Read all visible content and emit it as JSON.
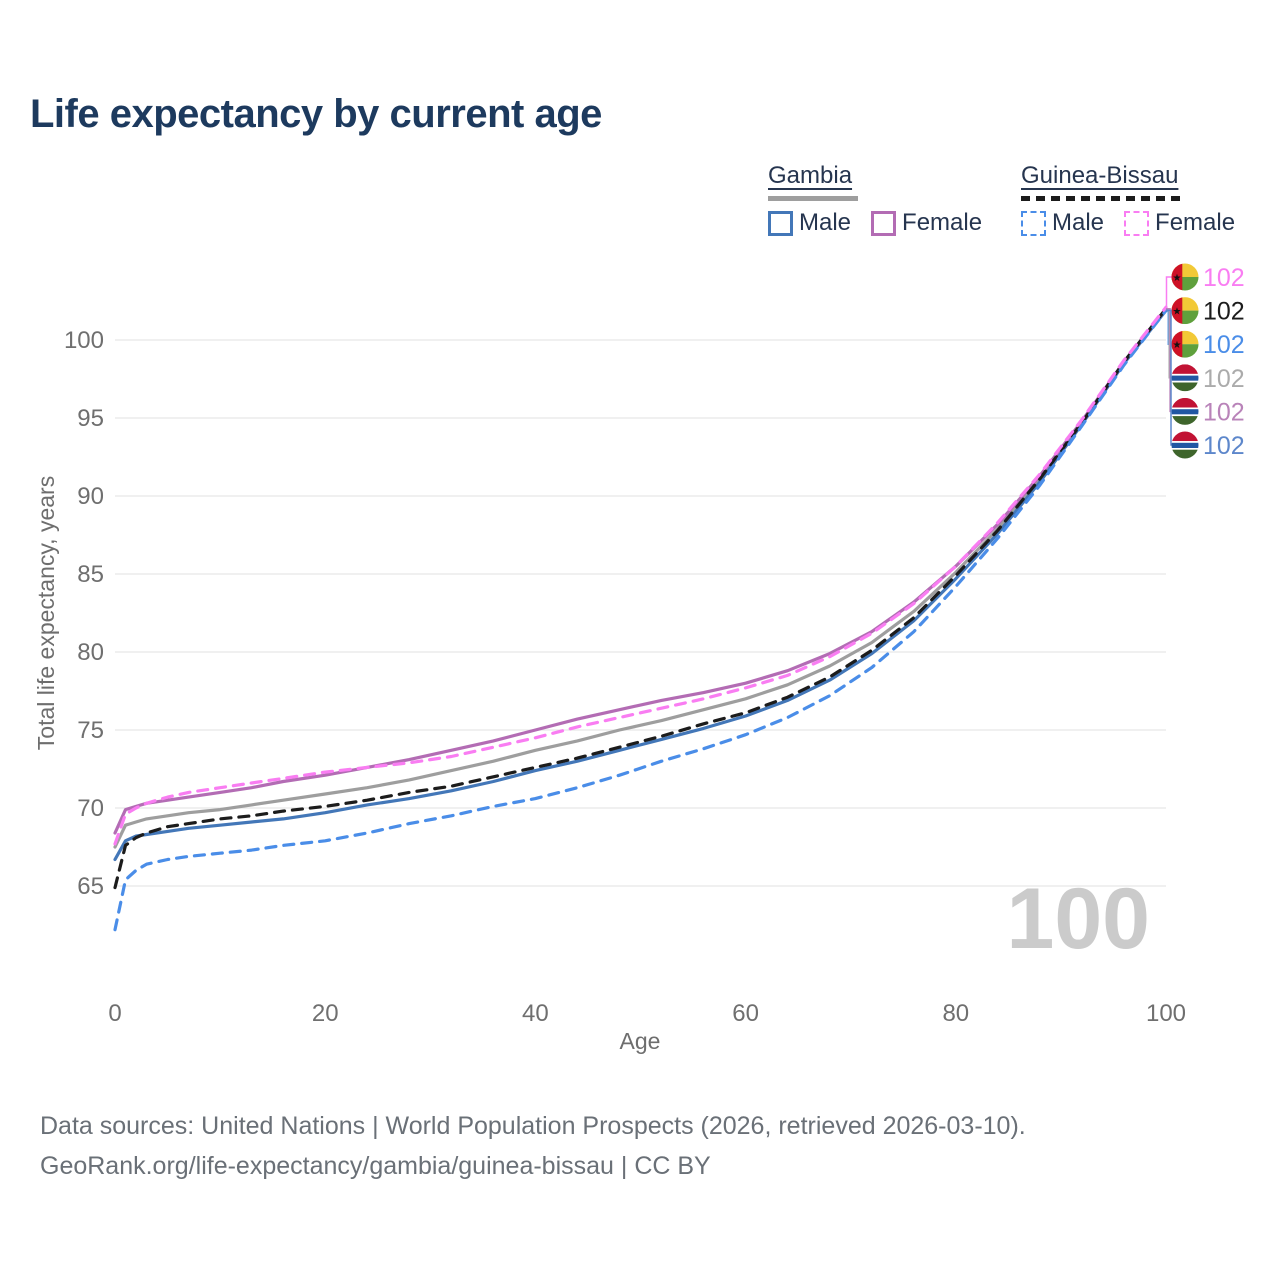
{
  "title": "Life expectancy by current age",
  "legend": {
    "groups": [
      {
        "country": "Gambia",
        "line_style": "solid",
        "line_color": "#9e9e9e",
        "items": [
          {
            "label": "Male",
            "color": "#4377b8"
          },
          {
            "label": "Female",
            "color": "#b36cb4"
          }
        ]
      },
      {
        "country": "Guinea-Bissau",
        "line_style": "dashed",
        "line_color": "#1c1c1c",
        "items": [
          {
            "label": "Male",
            "color": "#4a8de8"
          },
          {
            "label": "Female",
            "color": "#f97df2"
          }
        ]
      }
    ]
  },
  "chart_data": {
    "type": "line",
    "title": "Life expectancy by current age",
    "xlabel": "Age",
    "ylabel": "Total life expectancy, years",
    "x_ticks": [
      0,
      20,
      40,
      60,
      80,
      100
    ],
    "y_ticks": [
      65,
      70,
      75,
      80,
      85,
      90,
      95,
      100
    ],
    "xlim": [
      0,
      100
    ],
    "ylim": [
      61.5,
      103.5
    ],
    "grid": "horizontal-only",
    "legend_position": "top-right",
    "watermark_current_age": "100",
    "series": [
      {
        "id": "gambia-total",
        "name": "Gambia — Total",
        "color": "#9e9e9e",
        "dash": "solid",
        "points": [
          [
            0,
            67.5
          ],
          [
            1,
            68.9
          ],
          [
            2,
            69.1
          ],
          [
            3,
            69.3
          ],
          [
            5,
            69.5
          ],
          [
            7,
            69.7
          ],
          [
            10,
            69.9
          ],
          [
            13,
            70.2
          ],
          [
            16,
            70.5
          ],
          [
            20,
            70.9
          ],
          [
            24,
            71.3
          ],
          [
            28,
            71.8
          ],
          [
            32,
            72.4
          ],
          [
            36,
            73.0
          ],
          [
            40,
            73.7
          ],
          [
            44,
            74.3
          ],
          [
            48,
            75.0
          ],
          [
            52,
            75.6
          ],
          [
            56,
            76.3
          ],
          [
            60,
            77.0
          ],
          [
            64,
            77.9
          ],
          [
            68,
            79.1
          ],
          [
            72,
            80.6
          ],
          [
            76,
            82.6
          ],
          [
            80,
            85.1
          ],
          [
            84,
            87.9
          ],
          [
            88,
            91.1
          ],
          [
            92,
            94.7
          ],
          [
            96,
            98.6
          ],
          [
            100,
            102.0
          ]
        ]
      },
      {
        "id": "gambia-male",
        "name": "Gambia — Male",
        "color": "#4377b8",
        "dash": "solid",
        "points": [
          [
            0,
            66.7
          ],
          [
            1,
            67.9
          ],
          [
            2,
            68.2
          ],
          [
            3,
            68.3
          ],
          [
            5,
            68.5
          ],
          [
            7,
            68.7
          ],
          [
            10,
            68.9
          ],
          [
            13,
            69.1
          ],
          [
            16,
            69.3
          ],
          [
            20,
            69.7
          ],
          [
            24,
            70.2
          ],
          [
            28,
            70.6
          ],
          [
            32,
            71.1
          ],
          [
            36,
            71.7
          ],
          [
            40,
            72.4
          ],
          [
            44,
            73.0
          ],
          [
            48,
            73.7
          ],
          [
            52,
            74.4
          ],
          [
            56,
            75.1
          ],
          [
            60,
            75.9
          ],
          [
            64,
            76.9
          ],
          [
            68,
            78.2
          ],
          [
            72,
            79.9
          ],
          [
            76,
            82.0
          ],
          [
            80,
            84.7
          ],
          [
            84,
            87.6
          ],
          [
            88,
            90.9
          ],
          [
            92,
            94.6
          ],
          [
            96,
            98.5
          ],
          [
            100,
            101.9
          ]
        ]
      },
      {
        "id": "gambia-female",
        "name": "Gambia — Female",
        "color": "#b36cb4",
        "dash": "solid",
        "points": [
          [
            0,
            68.4
          ],
          [
            1,
            69.9
          ],
          [
            2,
            70.1
          ],
          [
            3,
            70.3
          ],
          [
            5,
            70.5
          ],
          [
            7,
            70.7
          ],
          [
            10,
            71.0
          ],
          [
            13,
            71.3
          ],
          [
            16,
            71.7
          ],
          [
            20,
            72.1
          ],
          [
            24,
            72.6
          ],
          [
            28,
            73.1
          ],
          [
            32,
            73.7
          ],
          [
            36,
            74.3
          ],
          [
            40,
            75.0
          ],
          [
            44,
            75.7
          ],
          [
            48,
            76.3
          ],
          [
            52,
            76.9
          ],
          [
            56,
            77.4
          ],
          [
            60,
            78.0
          ],
          [
            64,
            78.8
          ],
          [
            68,
            79.9
          ],
          [
            72,
            81.3
          ],
          [
            76,
            83.2
          ],
          [
            80,
            85.5
          ],
          [
            84,
            88.2
          ],
          [
            88,
            91.3
          ],
          [
            92,
            94.8
          ],
          [
            96,
            98.6
          ],
          [
            100,
            102.0
          ]
        ]
      },
      {
        "id": "guinea-bissau-total",
        "name": "Guinea-Bissau — Total",
        "color": "#1c1c1c",
        "dash": "dashed",
        "points": [
          [
            0,
            64.9
          ],
          [
            1,
            67.6
          ],
          [
            2,
            68.1
          ],
          [
            3,
            68.4
          ],
          [
            5,
            68.8
          ],
          [
            7,
            69.0
          ],
          [
            10,
            69.3
          ],
          [
            13,
            69.5
          ],
          [
            16,
            69.8
          ],
          [
            20,
            70.1
          ],
          [
            24,
            70.5
          ],
          [
            28,
            71.0
          ],
          [
            32,
            71.4
          ],
          [
            36,
            72.0
          ],
          [
            40,
            72.6
          ],
          [
            44,
            73.2
          ],
          [
            48,
            73.9
          ],
          [
            52,
            74.6
          ],
          [
            56,
            75.4
          ],
          [
            60,
            76.1
          ],
          [
            64,
            77.1
          ],
          [
            68,
            78.4
          ],
          [
            72,
            80.1
          ],
          [
            76,
            82.2
          ],
          [
            80,
            84.9
          ],
          [
            84,
            87.8
          ],
          [
            88,
            91.1
          ],
          [
            92,
            94.7
          ],
          [
            96,
            98.6
          ],
          [
            100,
            102.0
          ]
        ]
      },
      {
        "id": "guinea-bissau-male",
        "name": "Guinea-Bissau — Male",
        "color": "#4a8de8",
        "dash": "dashed",
        "points": [
          [
            0,
            62.2
          ],
          [
            1,
            65.4
          ],
          [
            2,
            66.0
          ],
          [
            3,
            66.4
          ],
          [
            5,
            66.7
          ],
          [
            7,
            66.9
          ],
          [
            10,
            67.1
          ],
          [
            13,
            67.3
          ],
          [
            16,
            67.6
          ],
          [
            20,
            67.9
          ],
          [
            24,
            68.4
          ],
          [
            28,
            69.0
          ],
          [
            32,
            69.5
          ],
          [
            36,
            70.1
          ],
          [
            40,
            70.6
          ],
          [
            44,
            71.3
          ],
          [
            48,
            72.1
          ],
          [
            52,
            73.0
          ],
          [
            56,
            73.8
          ],
          [
            60,
            74.7
          ],
          [
            64,
            75.8
          ],
          [
            68,
            77.2
          ],
          [
            72,
            79.0
          ],
          [
            76,
            81.3
          ],
          [
            80,
            84.2
          ],
          [
            84,
            87.3
          ],
          [
            88,
            90.7
          ],
          [
            92,
            94.5
          ],
          [
            96,
            98.4
          ],
          [
            100,
            101.9
          ]
        ]
      },
      {
        "id": "guinea-bissau-female",
        "name": "Guinea-Bissau — Female",
        "color": "#f97df2",
        "dash": "dashed",
        "points": [
          [
            0,
            67.7
          ],
          [
            1,
            69.6
          ],
          [
            2,
            70.0
          ],
          [
            3,
            70.3
          ],
          [
            5,
            70.7
          ],
          [
            7,
            71.0
          ],
          [
            10,
            71.3
          ],
          [
            13,
            71.6
          ],
          [
            16,
            71.9
          ],
          [
            20,
            72.3
          ],
          [
            24,
            72.6
          ],
          [
            28,
            72.9
          ],
          [
            32,
            73.3
          ],
          [
            36,
            73.9
          ],
          [
            40,
            74.5
          ],
          [
            44,
            75.2
          ],
          [
            48,
            75.8
          ],
          [
            52,
            76.4
          ],
          [
            56,
            77.0
          ],
          [
            60,
            77.7
          ],
          [
            64,
            78.5
          ],
          [
            68,
            79.7
          ],
          [
            72,
            81.2
          ],
          [
            76,
            83.1
          ],
          [
            80,
            85.5
          ],
          [
            84,
            88.3
          ],
          [
            88,
            91.4
          ],
          [
            92,
            94.9
          ],
          [
            96,
            98.7
          ],
          [
            100,
            102.1
          ]
        ]
      }
    ],
    "end_labels": [
      {
        "series": "guinea-bissau-female",
        "flag": "guinea-bissau",
        "label": "102",
        "color": "#f97df2"
      },
      {
        "series": "guinea-bissau-total",
        "flag": "guinea-bissau",
        "label": "102",
        "color": "#1c1c1c"
      },
      {
        "series": "guinea-bissau-male",
        "flag": "guinea-bissau",
        "label": "102",
        "color": "#4a8de8"
      },
      {
        "series": "gambia-total",
        "flag": "gambia",
        "label": "102",
        "color": "#ababab"
      },
      {
        "series": "gambia-female",
        "flag": "gambia",
        "label": "102",
        "color": "#b983b9"
      },
      {
        "series": "gambia-male",
        "flag": "gambia",
        "label": "102",
        "color": "#5d87cb"
      }
    ],
    "flag_colors": {
      "gambia": {
        "red": "#c11334",
        "white": "#ffffff",
        "blue": "#2157a3",
        "green": "#3e652b"
      },
      "guinea_bissau": {
        "red": "#ce1126",
        "yellow": "#f2c937",
        "green": "#5fa03c",
        "star": "#111111"
      }
    }
  },
  "footer": {
    "line1": "Data sources: United Nations | World Population Prospects (2026, retrieved 2026-03-10).",
    "line2": "GeoRank.org/life-expectancy/gambia/guinea-bissau | CC BY"
  }
}
